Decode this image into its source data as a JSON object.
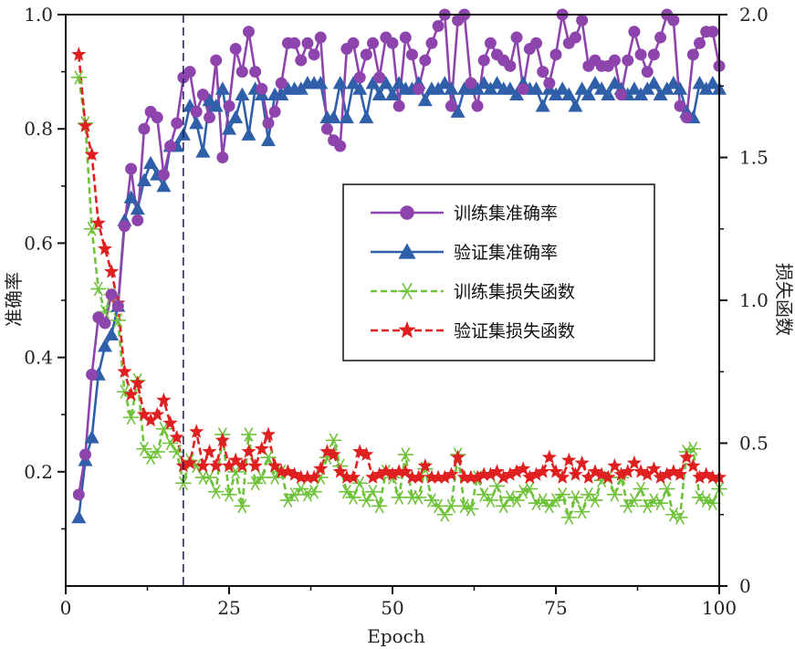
{
  "chart_data": {
    "type": "line",
    "xlabel": "Epoch",
    "ylabel_left": "准确率",
    "ylabel_right": "损失函数",
    "xlim": [
      0,
      100
    ],
    "ylim_left": [
      0.0,
      1.0
    ],
    "ylim_right": [
      0.0,
      2.0
    ],
    "x_ticks": [
      "0",
      "25",
      "50",
      "75",
      "100"
    ],
    "y_left_ticks": [
      "0.2",
      "0.4",
      "0.6",
      "0.8",
      "1.0"
    ],
    "y_right_ticks": [
      "0",
      "0.5",
      "1.0",
      "1.5",
      "2.0"
    ],
    "vline_x": 18,
    "grid": false,
    "legend_position": "center-right",
    "series": [
      {
        "name": "训练集准确率",
        "axis": "left",
        "color": "#8e44ad",
        "marker": "circle",
        "x": [
          2,
          3,
          4,
          5,
          6,
          7,
          8,
          9,
          10,
          11,
          12,
          13,
          14,
          15,
          16,
          17,
          18,
          19,
          20,
          21,
          22,
          23,
          24,
          25,
          26,
          27,
          28,
          29,
          30,
          31,
          32,
          33,
          34,
          35,
          36,
          37,
          38,
          39,
          40,
          41,
          42,
          43,
          44,
          45,
          46,
          47,
          48,
          49,
          50,
          51,
          52,
          53,
          54,
          55,
          56,
          57,
          58,
          59,
          60,
          61,
          62,
          63,
          64,
          65,
          66,
          67,
          68,
          69,
          70,
          71,
          72,
          73,
          74,
          75,
          76,
          77,
          78,
          79,
          80,
          81,
          82,
          83,
          84,
          85,
          86,
          87,
          88,
          89,
          90,
          91,
          92,
          93,
          94,
          95,
          96,
          97,
          98,
          99,
          100
        ],
        "y": [
          0.16,
          0.23,
          0.37,
          0.47,
          0.46,
          0.51,
          0.49,
          0.63,
          0.73,
          0.64,
          0.8,
          0.83,
          0.82,
          0.72,
          0.77,
          0.81,
          0.89,
          0.9,
          0.83,
          0.86,
          0.82,
          0.92,
          0.75,
          0.84,
          0.94,
          0.9,
          0.97,
          0.9,
          0.87,
          0.81,
          0.83,
          0.88,
          0.95,
          0.95,
          0.92,
          0.95,
          0.93,
          0.96,
          0.8,
          0.78,
          0.77,
          0.94,
          0.95,
          0.89,
          0.93,
          0.95,
          0.89,
          0.96,
          0.95,
          0.84,
          0.96,
          0.93,
          0.87,
          0.92,
          0.95,
          0.98,
          1.0,
          0.84,
          0.99,
          1.0,
          0.88,
          0.84,
          0.92,
          0.95,
          0.93,
          0.92,
          0.91,
          0.96,
          0.87,
          0.94,
          0.95,
          0.9,
          0.88,
          0.93,
          1.0,
          0.95,
          0.96,
          0.99,
          0.91,
          0.92,
          0.91,
          0.91,
          0.92,
          0.86,
          0.92,
          0.97,
          0.93,
          0.9,
          0.93,
          0.96,
          1.0,
          0.99,
          0.84,
          0.82,
          0.93,
          0.95,
          0.97,
          0.97,
          0.91
        ]
      },
      {
        "name": "验证集准确率",
        "axis": "left",
        "color": "#2f5fa8",
        "marker": "triangle",
        "x": [
          2,
          3,
          4,
          5,
          6,
          7,
          8,
          9,
          10,
          11,
          12,
          13,
          14,
          15,
          16,
          17,
          18,
          19,
          20,
          21,
          22,
          23,
          24,
          25,
          26,
          27,
          28,
          29,
          30,
          31,
          32,
          33,
          34,
          35,
          36,
          37,
          38,
          39,
          40,
          41,
          42,
          43,
          44,
          45,
          46,
          47,
          48,
          49,
          50,
          51,
          52,
          53,
          54,
          55,
          56,
          57,
          58,
          59,
          60,
          61,
          62,
          63,
          64,
          65,
          66,
          67,
          68,
          69,
          70,
          71,
          72,
          73,
          74,
          75,
          76,
          77,
          78,
          79,
          80,
          81,
          82,
          83,
          84,
          85,
          86,
          87,
          88,
          89,
          90,
          91,
          92,
          93,
          94,
          95,
          96,
          97,
          98,
          99,
          100
        ],
        "y": [
          0.12,
          0.22,
          0.26,
          0.37,
          0.42,
          0.44,
          0.49,
          0.64,
          0.68,
          0.66,
          0.71,
          0.74,
          0.72,
          0.7,
          0.77,
          0.77,
          0.79,
          0.84,
          0.81,
          0.76,
          0.85,
          0.84,
          0.87,
          0.8,
          0.82,
          0.86,
          0.79,
          0.87,
          0.86,
          0.78,
          0.86,
          0.86,
          0.87,
          0.87,
          0.87,
          0.88,
          0.88,
          0.88,
          0.82,
          0.82,
          0.88,
          0.82,
          0.88,
          0.87,
          0.82,
          0.88,
          0.86,
          0.88,
          0.86,
          0.88,
          0.87,
          0.87,
          0.88,
          0.85,
          0.87,
          0.87,
          0.88,
          0.87,
          0.83,
          0.87,
          0.87,
          0.87,
          0.88,
          0.87,
          0.88,
          0.87,
          0.87,
          0.86,
          0.88,
          0.87,
          0.87,
          0.84,
          0.87,
          0.86,
          0.87,
          0.86,
          0.84,
          0.87,
          0.86,
          0.88,
          0.87,
          0.86,
          0.88,
          0.87,
          0.86,
          0.87,
          0.86,
          0.87,
          0.88,
          0.86,
          0.87,
          0.88,
          0.87,
          0.83,
          0.82,
          0.88,
          0.87,
          0.88,
          0.87
        ]
      },
      {
        "name": "训练集损失函数",
        "axis": "right",
        "color": "#6fc23a",
        "marker": "asterisk",
        "x": [
          2,
          3,
          4,
          5,
          6,
          7,
          8,
          9,
          10,
          11,
          12,
          13,
          14,
          15,
          16,
          17,
          18,
          19,
          20,
          21,
          22,
          23,
          24,
          25,
          26,
          27,
          28,
          29,
          30,
          31,
          32,
          33,
          34,
          35,
          36,
          37,
          38,
          39,
          40,
          41,
          42,
          43,
          44,
          45,
          46,
          47,
          48,
          49,
          50,
          51,
          52,
          53,
          54,
          55,
          56,
          57,
          58,
          59,
          60,
          61,
          62,
          63,
          64,
          65,
          66,
          67,
          68,
          69,
          70,
          71,
          72,
          73,
          74,
          75,
          76,
          77,
          78,
          79,
          80,
          81,
          82,
          83,
          84,
          85,
          86,
          87,
          88,
          89,
          90,
          91,
          92,
          93,
          94,
          95,
          96,
          97,
          98,
          99,
          100
        ],
        "y": [
          1.78,
          1.62,
          1.25,
          1.04,
          0.96,
          1.02,
          0.93,
          0.68,
          0.59,
          0.72,
          0.48,
          0.45,
          0.47,
          0.55,
          0.5,
          0.47,
          0.36,
          0.44,
          0.42,
          0.38,
          0.38,
          0.33,
          0.53,
          0.32,
          0.4,
          0.28,
          0.53,
          0.36,
          0.38,
          0.45,
          0.38,
          0.4,
          0.3,
          0.32,
          0.34,
          0.32,
          0.33,
          0.38,
          0.45,
          0.51,
          0.42,
          0.33,
          0.31,
          0.36,
          0.3,
          0.33,
          0.28,
          0.4,
          0.38,
          0.31,
          0.46,
          0.31,
          0.31,
          0.41,
          0.3,
          0.28,
          0.25,
          0.28,
          0.46,
          0.28,
          0.27,
          0.38,
          0.32,
          0.3,
          0.35,
          0.28,
          0.31,
          0.3,
          0.33,
          0.34,
          0.29,
          0.3,
          0.28,
          0.3,
          0.32,
          0.24,
          0.31,
          0.26,
          0.32,
          0.3,
          0.37,
          0.38,
          0.32,
          0.38,
          0.28,
          0.3,
          0.34,
          0.28,
          0.3,
          0.29,
          0.34,
          0.25,
          0.24,
          0.47,
          0.48,
          0.31,
          0.3,
          0.29,
          0.34
        ]
      },
      {
        "name": "验证集损失函数",
        "axis": "right",
        "color": "#e02020",
        "marker": "star",
        "x": [
          2,
          3,
          4,
          5,
          6,
          7,
          8,
          9,
          10,
          11,
          12,
          13,
          14,
          15,
          16,
          17,
          18,
          19,
          20,
          21,
          22,
          23,
          24,
          25,
          26,
          27,
          28,
          29,
          30,
          31,
          32,
          33,
          34,
          35,
          36,
          37,
          38,
          39,
          40,
          41,
          42,
          43,
          44,
          45,
          46,
          47,
          48,
          49,
          50,
          51,
          52,
          53,
          54,
          55,
          56,
          57,
          58,
          59,
          60,
          61,
          62,
          63,
          64,
          65,
          66,
          67,
          68,
          69,
          70,
          71,
          72,
          73,
          74,
          75,
          76,
          77,
          78,
          79,
          80,
          81,
          82,
          83,
          84,
          85,
          86,
          87,
          88,
          89,
          90,
          91,
          92,
          93,
          94,
          95,
          96,
          97,
          98,
          99,
          100
        ],
        "y": [
          1.86,
          1.61,
          1.51,
          1.27,
          1.18,
          1.1,
          0.99,
          0.75,
          0.67,
          0.71,
          0.6,
          0.58,
          0.6,
          0.65,
          0.57,
          0.52,
          0.42,
          0.43,
          0.54,
          0.42,
          0.47,
          0.42,
          0.51,
          0.42,
          0.44,
          0.42,
          0.47,
          0.42,
          0.48,
          0.53,
          0.42,
          0.4,
          0.4,
          0.39,
          0.38,
          0.38,
          0.38,
          0.41,
          0.47,
          0.46,
          0.4,
          0.38,
          0.38,
          0.47,
          0.46,
          0.38,
          0.39,
          0.4,
          0.39,
          0.4,
          0.4,
          0.38,
          0.38,
          0.42,
          0.38,
          0.38,
          0.38,
          0.39,
          0.45,
          0.38,
          0.38,
          0.38,
          0.39,
          0.39,
          0.4,
          0.38,
          0.39,
          0.4,
          0.41,
          0.38,
          0.39,
          0.4,
          0.45,
          0.4,
          0.38,
          0.44,
          0.39,
          0.43,
          0.38,
          0.4,
          0.39,
          0.38,
          0.42,
          0.39,
          0.4,
          0.43,
          0.4,
          0.39,
          0.41,
          0.38,
          0.39,
          0.4,
          0.39,
          0.45,
          0.42,
          0.38,
          0.39,
          0.38,
          0.38
        ]
      }
    ]
  }
}
